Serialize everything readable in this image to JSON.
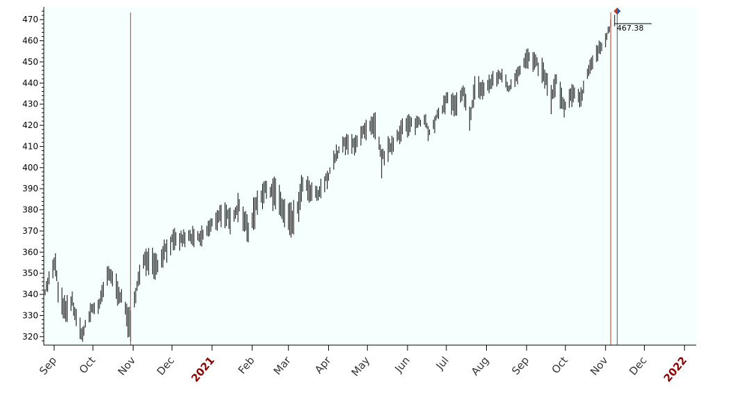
{
  "chart_data": {
    "type": "bar",
    "style": "ohlc-price-bars",
    "ylim": [
      316,
      476
    ],
    "yticks": [
      320,
      330,
      340,
      350,
      360,
      370,
      380,
      390,
      400,
      410,
      420,
      430,
      440,
      450,
      460,
      470
    ],
    "x_range": [
      "2020-08-24",
      "2022-01-10"
    ],
    "x_ticks": [
      {
        "date": "2020-09-01",
        "label": "Sep",
        "year": false
      },
      {
        "date": "2020-10-01",
        "label": "Oct",
        "year": false
      },
      {
        "date": "2020-11-01",
        "label": "Nov",
        "year": false
      },
      {
        "date": "2020-12-01",
        "label": "Dec",
        "year": false
      },
      {
        "date": "2021-01-01",
        "label": "2021",
        "year": true
      },
      {
        "date": "2021-02-01",
        "label": "Feb",
        "year": false
      },
      {
        "date": "2021-03-01",
        "label": "Mar",
        "year": false
      },
      {
        "date": "2021-04-01",
        "label": "Apr",
        "year": false
      },
      {
        "date": "2021-05-01",
        "label": "May",
        "year": false
      },
      {
        "date": "2021-06-01",
        "label": "Jun",
        "year": false
      },
      {
        "date": "2021-07-01",
        "label": "Jul",
        "year": false
      },
      {
        "date": "2021-08-01",
        "label": "Aug",
        "year": false
      },
      {
        "date": "2021-09-01",
        "label": "Sep",
        "year": false
      },
      {
        "date": "2021-10-01",
        "label": "Oct",
        "year": false
      },
      {
        "date": "2021-11-01",
        "label": "Nov",
        "year": false
      },
      {
        "date": "2021-12-01",
        "label": "Dec",
        "year": false
      },
      {
        "date": "2022-01-01",
        "label": "2022",
        "year": true
      }
    ],
    "series": [
      {
        "close_points": [
          [
            "2020-08-24",
            340
          ],
          [
            "2020-08-28",
            348
          ],
          [
            "2020-09-02",
            356
          ],
          [
            "2020-09-04",
            342
          ],
          [
            "2020-09-10",
            333
          ],
          [
            "2020-09-15",
            338
          ],
          [
            "2020-09-18",
            329
          ],
          [
            "2020-09-23",
            322
          ],
          [
            "2020-09-30",
            334
          ],
          [
            "2020-10-06",
            336
          ],
          [
            "2020-10-12",
            350
          ],
          [
            "2020-10-16",
            349
          ],
          [
            "2020-10-21",
            342
          ],
          [
            "2020-10-26",
            334
          ],
          [
            "2020-10-30",
            326
          ],
          [
            "2020-11-04",
            346
          ],
          [
            "2020-11-09",
            356
          ],
          [
            "2020-11-13",
            359
          ],
          [
            "2020-11-20",
            355
          ],
          [
            "2020-11-25",
            362
          ],
          [
            "2020-12-01",
            366
          ],
          [
            "2020-12-08",
            367
          ],
          [
            "2020-12-15",
            368
          ],
          [
            "2020-12-22",
            367
          ],
          [
            "2020-12-31",
            373
          ],
          [
            "2021-01-08",
            380
          ],
          [
            "2021-01-15",
            376
          ],
          [
            "2021-01-22",
            384
          ],
          [
            "2021-01-29",
            371
          ],
          [
            "2021-02-05",
            386
          ],
          [
            "2021-02-12",
            391
          ],
          [
            "2021-02-19",
            390
          ],
          [
            "2021-02-25",
            381
          ],
          [
            "2021-03-04",
            376
          ],
          [
            "2021-03-09",
            384
          ],
          [
            "2021-03-12",
            394
          ],
          [
            "2021-03-18",
            389
          ],
          [
            "2021-03-24",
            388
          ],
          [
            "2021-03-31",
            396
          ],
          [
            "2021-04-06",
            406
          ],
          [
            "2021-04-13",
            412
          ],
          [
            "2021-04-20",
            412
          ],
          [
            "2021-04-29",
            418
          ],
          [
            "2021-05-07",
            421
          ],
          [
            "2021-05-12",
            405
          ],
          [
            "2021-05-19",
            411
          ],
          [
            "2021-05-28",
            420
          ],
          [
            "2021-06-08",
            422
          ],
          [
            "2021-06-15",
            424
          ],
          [
            "2021-06-18",
            416
          ],
          [
            "2021-06-25",
            426
          ],
          [
            "2021-07-02",
            434
          ],
          [
            "2021-07-08",
            430
          ],
          [
            "2021-07-14",
            436
          ],
          [
            "2021-07-19",
            424
          ],
          [
            "2021-07-23",
            439
          ],
          [
            "2021-07-30",
            438
          ],
          [
            "2021-08-06",
            442
          ],
          [
            "2021-08-13",
            445
          ],
          [
            "2021-08-18",
            438
          ],
          [
            "2021-08-26",
            447
          ],
          [
            "2021-09-02",
            453
          ],
          [
            "2021-09-08",
            450
          ],
          [
            "2021-09-14",
            446
          ],
          [
            "2021-09-20",
            434
          ],
          [
            "2021-09-24",
            442
          ],
          [
            "2021-09-30",
            429
          ],
          [
            "2021-10-04",
            433
          ],
          [
            "2021-10-08",
            437
          ],
          [
            "2021-10-13",
            434
          ],
          [
            "2021-10-19",
            448
          ],
          [
            "2021-10-25",
            454
          ],
          [
            "2021-10-29",
            459
          ],
          [
            "2021-11-03",
            465
          ],
          [
            "2021-11-05",
            468
          ],
          [
            "2021-11-08",
            470
          ]
        ],
        "range_points": [
          [
            "2020-08-24",
            4
          ],
          [
            "2020-09-04",
            12
          ],
          [
            "2020-09-18",
            9
          ],
          [
            "2020-10-01",
            7
          ],
          [
            "2020-10-30",
            12
          ],
          [
            "2020-11-09",
            11
          ],
          [
            "2020-12-15",
            7
          ],
          [
            "2021-01-29",
            12
          ],
          [
            "2021-03-04",
            13
          ],
          [
            "2021-03-31",
            7
          ],
          [
            "2021-05-12",
            11
          ],
          [
            "2021-06-18",
            6
          ],
          [
            "2021-07-19",
            10
          ],
          [
            "2021-08-18",
            6
          ],
          [
            "2021-09-20",
            11
          ],
          [
            "2021-10-04",
            9
          ],
          [
            "2021-10-29",
            6
          ],
          [
            "2021-11-08",
            5
          ]
        ]
      }
    ],
    "vertical_markers": [
      {
        "date": "2020-10-30",
        "color": "#c0392b"
      },
      {
        "date": "2021-11-05",
        "color": "#c0392b"
      },
      {
        "date": "2021-11-10",
        "color": "#1f6f8b"
      }
    ],
    "last_price": {
      "date": "2021-11-10",
      "value": 467.38,
      "label": "467.38"
    },
    "colors": {
      "plot_background": "#f5fffe",
      "bars": "#000000",
      "marker_red": "#c0392b",
      "marker_teal": "#1f6f8b",
      "year_label": "#8b0000",
      "month_label": "#333333"
    }
  }
}
